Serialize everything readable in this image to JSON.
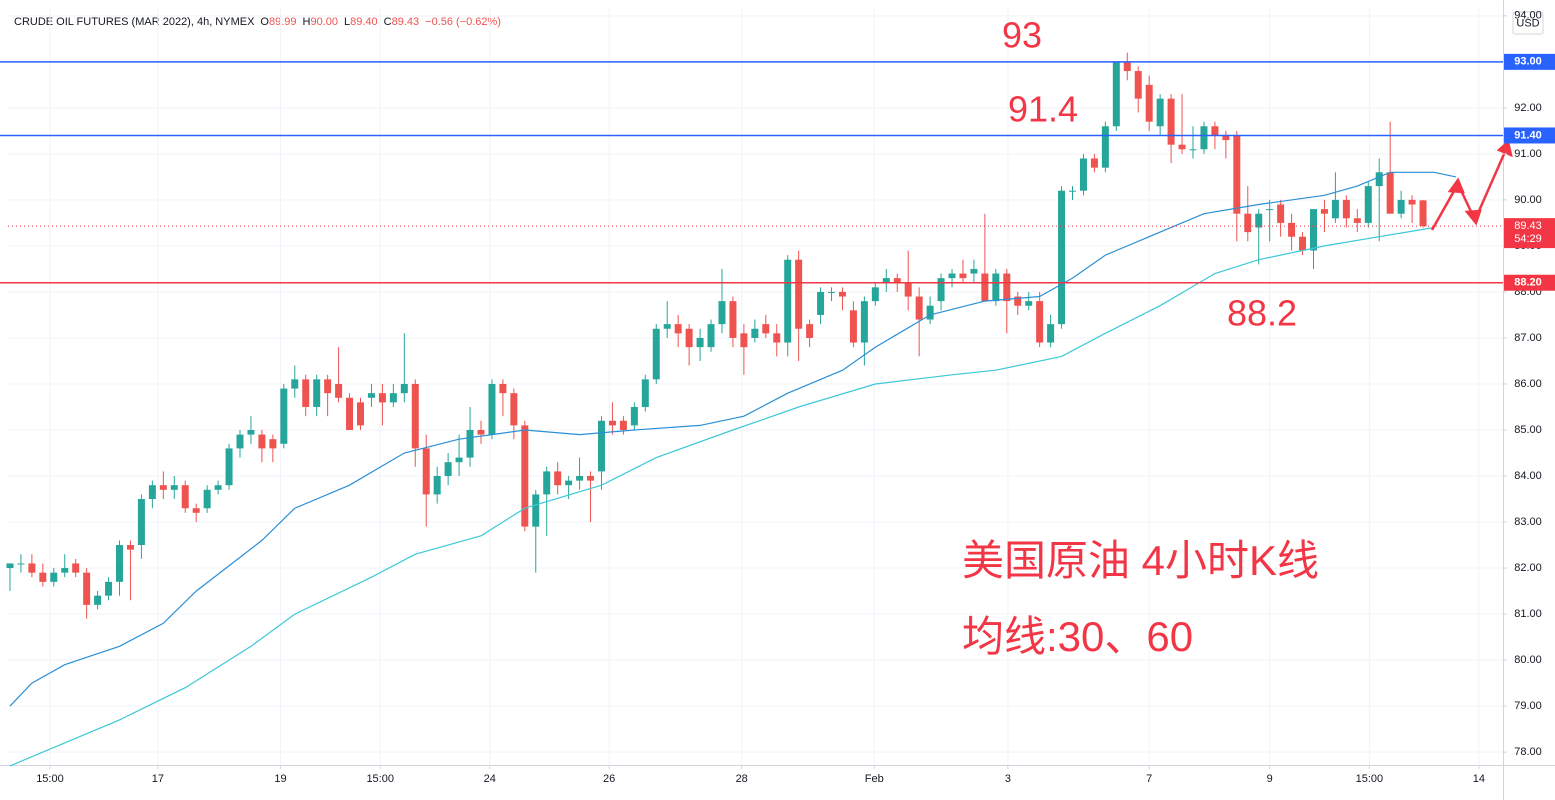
{
  "chart_data": {
    "type": "candlestick",
    "header": {
      "symbol": "CRUDE OIL FUTURES (MAR 2022), 4h, NYMEX",
      "ohlc": [
        {
          "key": "O",
          "value": "89.99"
        },
        {
          "key": "H",
          "value": "90.00"
        },
        {
          "key": "L",
          "value": "89.40"
        },
        {
          "key": "C",
          "value": "89.43"
        }
      ],
      "change": "−0.56 (−0.62%)"
    },
    "currency": "USD",
    "up_color": "#26a69a",
    "down_color": "#ef5350",
    "open": [
      82.0,
      82.1,
      82.1,
      81.9,
      81.7,
      81.9,
      82.1,
      81.9,
      81.2,
      81.4,
      81.7,
      82.5,
      82.5,
      83.5,
      83.8,
      83.7,
      83.8,
      83.3,
      83.3,
      83.7,
      83.8,
      84.6,
      84.9,
      84.9,
      84.8,
      84.7,
      85.9,
      86.1,
      85.5,
      86.1,
      86.0,
      85.7,
      85.6,
      85.7,
      85.8,
      85.6,
      85.8,
      86.0,
      84.6,
      83.6,
      84.0,
      84.3,
      84.4,
      85.0,
      84.9,
      86.0,
      85.8,
      85.1,
      82.9,
      83.6,
      84.1,
      83.8,
      83.9,
      84.0,
      84.1,
      85.2,
      85.2,
      85.1,
      85.5,
      86.1,
      87.2,
      87.3,
      87.2,
      86.8,
      86.8,
      87.3,
      87.8,
      87.1,
      87.0,
      87.3,
      87.1,
      86.9,
      88.7,
      87.3,
      87.5,
      88.0,
      88.0,
      87.6,
      86.9,
      87.8,
      88.2,
      88.3,
      88.2,
      87.9,
      87.4,
      87.8,
      88.3,
      88.4,
      88.4,
      88.4,
      87.8,
      88.4,
      87.9,
      87.7,
      87.8,
      86.9,
      87.3,
      90.2,
      90.2,
      90.9,
      90.7,
      91.6,
      93.0,
      92.8,
      92.5,
      91.6,
      92.2,
      91.2,
      91.1,
      91.1,
      91.6,
      91.4,
      91.4,
      89.7,
      89.4,
      89.8,
      89.9,
      89.5,
      89.2,
      88.9,
      89.8,
      89.6,
      90.0,
      89.6,
      89.5,
      90.3,
      90.6,
      89.7,
      90.0,
      89.99
    ],
    "high": [
      82.1,
      82.3,
      82.3,
      82.1,
      82.0,
      82.3,
      82.2,
      82.0,
      81.5,
      81.8,
      82.6,
      82.6,
      83.6,
      83.9,
      84.1,
      84.0,
      83.9,
      83.4,
      83.8,
      83.9,
      84.7,
      85.0,
      85.3,
      85.0,
      84.9,
      86.0,
      86.4,
      86.2,
      86.2,
      86.2,
      86.8,
      85.8,
      85.7,
      86.0,
      86.0,
      86.0,
      87.1,
      86.1,
      84.9,
      84.2,
      84.5,
      84.9,
      85.5,
      85.2,
      86.1,
      86.1,
      85.9,
      85.2,
      83.7,
      84.2,
      84.3,
      84.0,
      84.4,
      84.1,
      85.3,
      85.6,
      85.3,
      85.6,
      86.2,
      87.3,
      87.8,
      87.5,
      87.3,
      87.2,
      87.4,
      88.5,
      87.9,
      87.3,
      87.4,
      87.5,
      87.3,
      88.8,
      88.9,
      87.4,
      88.1,
      88.1,
      88.1,
      87.8,
      87.9,
      88.2,
      88.5,
      88.4,
      88.9,
      88.1,
      87.9,
      88.4,
      88.5,
      88.7,
      88.7,
      89.7,
      88.5,
      88.5,
      88.0,
      88.0,
      88.0,
      87.5,
      90.3,
      90.3,
      91.0,
      91.0,
      91.7,
      93.0,
      93.2,
      92.9,
      92.7,
      92.3,
      92.3,
      92.3,
      91.6,
      91.7,
      91.7,
      91.5,
      91.5,
      90.3,
      89.8,
      90.0,
      90.0,
      89.7,
      89.3,
      89.8,
      90.0,
      90.6,
      90.1,
      89.8,
      90.4,
      90.9,
      91.7,
      90.2,
      90.1,
      90.0
    ],
    "low": [
      81.5,
      81.9,
      81.8,
      81.6,
      81.6,
      81.8,
      81.8,
      80.9,
      81.1,
      81.3,
      81.4,
      81.3,
      82.2,
      83.3,
      83.5,
      83.5,
      83.2,
      83.0,
      83.2,
      83.6,
      83.7,
      84.4,
      84.7,
      84.3,
      84.3,
      84.6,
      85.7,
      85.3,
      85.3,
      85.3,
      85.6,
      85.0,
      85.0,
      85.5,
      85.1,
      85.5,
      85.6,
      84.2,
      82.9,
      83.4,
      83.8,
      84.0,
      84.2,
      84.7,
      84.8,
      85.3,
      84.8,
      82.8,
      81.9,
      82.7,
      83.6,
      83.5,
      83.7,
      83.0,
      83.7,
      84.9,
      84.9,
      85.0,
      85.4,
      86.0,
      87.0,
      86.8,
      86.4,
      86.5,
      86.7,
      87.1,
      86.8,
      86.2,
      86.9,
      87.0,
      86.6,
      86.6,
      86.5,
      86.8,
      87.3,
      87.8,
      87.6,
      86.8,
      86.4,
      87.7,
      88.0,
      88.0,
      87.6,
      86.6,
      87.3,
      87.6,
      88.1,
      88.2,
      88.2,
      87.8,
      87.7,
      87.1,
      87.5,
      87.6,
      86.8,
      86.8,
      87.2,
      90.0,
      90.1,
      90.6,
      90.6,
      91.5,
      92.6,
      91.9,
      91.5,
      91.4,
      90.8,
      91.0,
      90.9,
      91.0,
      91.1,
      90.9,
      89.1,
      89.1,
      88.6,
      89.1,
      89.2,
      88.9,
      88.8,
      88.5,
      89.3,
      89.5,
      89.4,
      89.3,
      89.4,
      89.1,
      89.7,
      89.6,
      89.5,
      89.4
    ],
    "close": [
      82.1,
      82.1,
      81.9,
      81.7,
      81.9,
      82.0,
      81.9,
      81.2,
      81.4,
      81.7,
      82.5,
      82.4,
      83.5,
      83.8,
      83.7,
      83.8,
      83.3,
      83.2,
      83.7,
      83.8,
      84.6,
      84.9,
      85.0,
      84.6,
      84.6,
      85.9,
      86.1,
      85.5,
      86.1,
      85.8,
      85.7,
      85.0,
      85.1,
      85.8,
      85.6,
      85.8,
      86.0,
      84.6,
      83.6,
      84.0,
      84.3,
      84.4,
      85.0,
      84.9,
      86.0,
      85.8,
      85.1,
      82.9,
      83.6,
      84.1,
      83.8,
      83.9,
      84.0,
      83.9,
      85.2,
      85.1,
      85.0,
      85.5,
      86.1,
      87.2,
      87.3,
      87.1,
      86.8,
      87.0,
      87.3,
      87.8,
      87.0,
      86.8,
      87.2,
      87.1,
      86.9,
      88.7,
      87.2,
      87.0,
      88.0,
      88.0,
      87.9,
      86.9,
      87.8,
      88.1,
      88.3,
      88.2,
      87.9,
      87.4,
      87.7,
      88.3,
      88.4,
      88.3,
      88.5,
      87.8,
      88.4,
      87.8,
      87.7,
      87.8,
      86.9,
      87.3,
      90.2,
      90.2,
      90.9,
      90.7,
      91.6,
      93.0,
      92.8,
      92.2,
      91.7,
      92.2,
      91.2,
      91.1,
      91.1,
      91.6,
      91.4,
      91.3,
      89.7,
      89.3,
      89.7,
      89.8,
      89.5,
      89.2,
      88.9,
      89.8,
      89.7,
      90.0,
      89.6,
      89.5,
      90.3,
      90.6,
      89.7,
      90.0,
      89.9,
      89.43
    ],
    "lines": [
      {
        "color": "#2a8fd6",
        "x": [
          0,
          2,
          5,
          10,
          14,
          17,
          23,
          26,
          31,
          36,
          41,
          47,
          52,
          57,
          63,
          67,
          71,
          76,
          79,
          84,
          89,
          94,
          97,
          100,
          105,
          109,
          114,
          120,
          123,
          126,
          130,
          132
        ],
        "values": [
          79.0,
          79.5,
          79.9,
          80.3,
          80.8,
          81.5,
          82.6,
          83.3,
          83.8,
          84.5,
          84.8,
          85.0,
          84.9,
          85.0,
          85.1,
          85.3,
          85.8,
          86.3,
          86.8,
          87.5,
          87.8,
          87.9,
          88.3,
          88.8,
          89.3,
          89.7,
          89.9,
          90.1,
          90.3,
          90.6,
          90.6,
          90.5
        ]
      },
      {
        "color": "#3cc8d8",
        "x": [
          0,
          5,
          10,
          16,
          22,
          26,
          33,
          37,
          43,
          47,
          54,
          59,
          66,
          72,
          79,
          86,
          90,
          96,
          100,
          105,
          110,
          114,
          120,
          125,
          130
        ],
        "values": [
          77.7,
          78.2,
          78.7,
          79.4,
          80.3,
          81.0,
          81.8,
          82.3,
          82.7,
          83.3,
          83.8,
          84.4,
          85.0,
          85.5,
          86.0,
          86.2,
          86.3,
          86.6,
          87.1,
          87.7,
          88.4,
          88.7,
          89.0,
          89.2,
          89.4
        ]
      }
    ],
    "levels": [
      {
        "value": 93,
        "label": "93.00",
        "color": "#2962ff"
      },
      {
        "value": 91.4,
        "label": "91.40",
        "color": "#2962ff"
      },
      {
        "value": 88.2,
        "label": "88.20",
        "color": "#f23645"
      }
    ],
    "last_price": {
      "value": 89.43,
      "label": "89.43",
      "countdown": "54:29",
      "color": "#f23645"
    },
    "xlim": [
      -0.18,
      136.3
    ],
    "xticks": [
      {
        "value": 3.65,
        "label": "15:00"
      },
      {
        "value": 13.5,
        "label": "17"
      },
      {
        "value": 24.7,
        "label": "19"
      },
      {
        "value": 33.8,
        "label": "15:00"
      },
      {
        "value": 43.8,
        "label": "24"
      },
      {
        "value": 54.7,
        "label": "26"
      },
      {
        "value": 66.8,
        "label": "28"
      },
      {
        "value": 78.9,
        "label": "Feb"
      },
      {
        "value": 91.1,
        "label": "3"
      },
      {
        "value": 104.0,
        "label": "7"
      },
      {
        "value": 115.0,
        "label": "9"
      },
      {
        "value": 124.1,
        "label": "15:00"
      },
      {
        "value": 134.1,
        "label": "14"
      }
    ],
    "ylim": [
      77.72,
      94.17
    ],
    "yticks": [
      {
        "value": 78,
        "label": "78.00"
      },
      {
        "value": 79,
        "label": "79.00"
      },
      {
        "value": 80,
        "label": "80.00"
      },
      {
        "value": 81,
        "label": "81.00"
      },
      {
        "value": 82,
        "label": "82.00"
      },
      {
        "value": 83,
        "label": "83.00"
      },
      {
        "value": 84,
        "label": "84.00"
      },
      {
        "value": 85,
        "label": "85.00"
      },
      {
        "value": 86,
        "label": "86.00"
      },
      {
        "value": 87,
        "label": "87.00"
      },
      {
        "value": 88,
        "label": "88.00"
      },
      {
        "value": 89,
        "label": "89.00"
      },
      {
        "value": 90,
        "label": "90.00"
      },
      {
        "value": 91,
        "label": "91.00"
      },
      {
        "value": 92,
        "label": "92.00"
      },
      {
        "value": 93,
        "label": "93.00"
      },
      {
        "value": 94,
        "label": "94.00"
      }
    ],
    "annotations": [
      "93",
      "91.4",
      "88.2",
      "美国原油 4小时K线",
      "均线:30、60"
    ]
  }
}
